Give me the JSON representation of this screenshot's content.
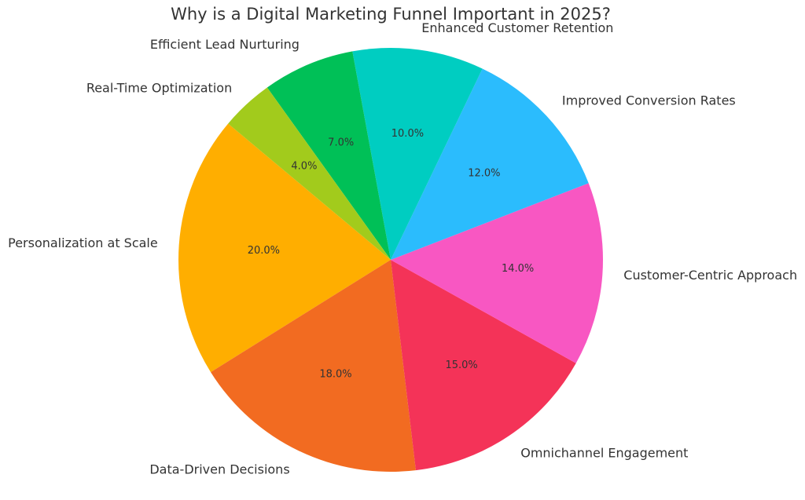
{
  "chart_data": {
    "type": "pie",
    "title": "Why is a Digital Marketing Funnel Important in 2025?",
    "categories": [
      "Personalization at Scale",
      "Data-Driven Decisions",
      "Omnichannel Engagement",
      "Customer-Centric Approach",
      "Improved Conversion Rates",
      "Enhanced Customer Retention",
      "Efficient Lead Nurturing",
      "Real-Time Optimization"
    ],
    "values": [
      20,
      18,
      15,
      14,
      12,
      10,
      7,
      4
    ],
    "value_labels": [
      "20.0%",
      "18.0%",
      "15.0%",
      "14.0%",
      "12.0%",
      "10.0%",
      "7.0%",
      "4.0%"
    ],
    "colors": [
      "#ffae00",
      "#f26b21",
      "#f43358",
      "#f857c2",
      "#2bbcfd",
      "#00cdc1",
      "#00c057",
      "#a2cb1c"
    ]
  }
}
